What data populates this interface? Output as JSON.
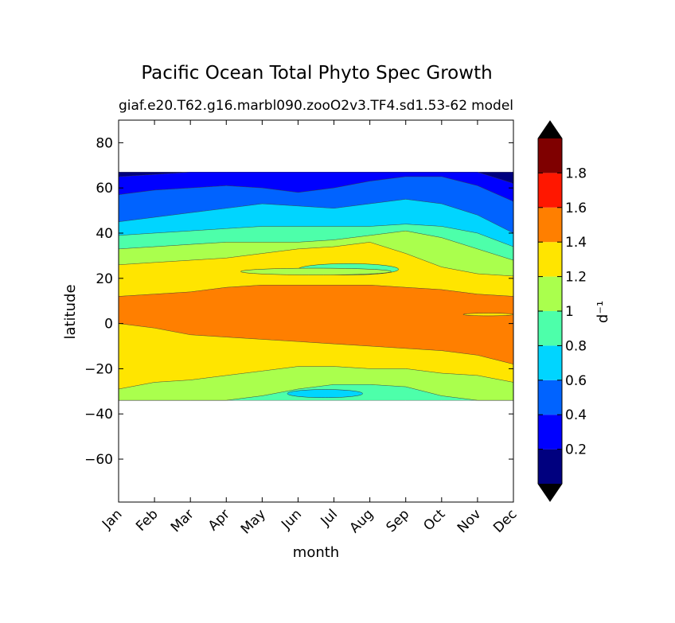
{
  "chart_data": {
    "type": "contourf",
    "title": "Pacific Ocean Total Phyto Spec Growth",
    "subtitle_left": "giaf.e20.T62.g16.marbl090.zooO2v3.TF4.sd1.53-62",
    "subtitle_right": "model",
    "xlabel": "month",
    "ylabel": "latitude",
    "x_tick_labels": [
      "Jan",
      "Feb",
      "Mar",
      "Apr",
      "May",
      "Jun",
      "Jul",
      "Aug",
      "Sep",
      "Oct",
      "Nov",
      "Dec"
    ],
    "x_range": [
      1,
      12
    ],
    "y_ticks": [
      80,
      60,
      40,
      20,
      0,
      -20,
      -40,
      -60
    ],
    "y_tick_labels": [
      "80",
      "60",
      "40",
      "20",
      "0",
      "−20",
      "−40",
      "−60"
    ],
    "ylim": [
      -79,
      90
    ],
    "data_lat_range": [
      -34,
      67
    ],
    "colorbar": {
      "label": "d⁻¹",
      "levels": [
        0,
        0.2,
        0.4,
        0.6,
        0.8,
        1.0,
        1.2,
        1.4,
        1.6,
        1.8,
        2.0
      ],
      "tick_values": [
        0.2,
        0.4,
        0.6,
        0.8,
        1.0,
        1.2,
        1.4,
        1.6,
        1.8
      ],
      "tick_labels": [
        "0.2",
        "0.4",
        "0.6",
        "0.8",
        "1",
        "1.2",
        "1.4",
        "1.6",
        "1.8"
      ],
      "colors": [
        "#00007f",
        "#0000ff",
        "#0063ff",
        "#00d5ff",
        "#4dffaa",
        "#aaff4d",
        "#ffe500",
        "#ff7f00",
        "#ff1700",
        "#7f0000"
      ],
      "extend": "both",
      "under_color": "#000000",
      "over_color": "#000000"
    },
    "bands": [
      {
        "level": "0-0.2",
        "top": [
          67,
          67,
          67,
          67,
          67,
          67,
          67,
          67,
          67,
          67,
          67,
          67
        ],
        "bottom": [
          65,
          66,
          67,
          67,
          67,
          67,
          67,
          67,
          67,
          67,
          67,
          62
        ]
      },
      {
        "level": "0.2-0.4",
        "top": [
          65,
          66,
          67,
          67,
          67,
          67,
          67,
          67,
          67,
          67,
          67,
          62
        ],
        "bottom": [
          57,
          59,
          60,
          61,
          60,
          58,
          60,
          63,
          65,
          65,
          61,
          54
        ]
      },
      {
        "level": "0.4-0.6",
        "top": [
          57,
          59,
          60,
          61,
          60,
          58,
          60,
          63,
          65,
          65,
          61,
          54
        ],
        "bottom": [
          45,
          47,
          49,
          51,
          53,
          52,
          51,
          53,
          55,
          53,
          48,
          40
        ]
      },
      {
        "level": "0.6-0.8",
        "top": [
          45,
          47,
          49,
          51,
          53,
          52,
          51,
          53,
          55,
          53,
          48,
          40
        ],
        "bottom": [
          39,
          40,
          41,
          42,
          43,
          43,
          43,
          43,
          44,
          43,
          40,
          34
        ]
      },
      {
        "level": "0.8-1.0",
        "top": [
          39,
          40,
          41,
          42,
          43,
          43,
          43,
          43,
          44,
          43,
          40,
          34
        ],
        "bottom": [
          33,
          34,
          35,
          36,
          36,
          36,
          37,
          39,
          41,
          38,
          33,
          28
        ]
      },
      {
        "level": "1.0-1.2",
        "top": [
          33,
          34,
          35,
          36,
          36,
          36,
          37,
          39,
          41,
          38,
          33,
          28
        ],
        "bottom": [
          26,
          27,
          28,
          29,
          31,
          33,
          34,
          36,
          31,
          25,
          22,
          21
        ]
      },
      {
        "level": "1.2-1.4",
        "top": [
          26,
          27,
          28,
          29,
          31,
          33,
          34,
          36,
          31,
          25,
          22,
          21
        ],
        "bottom": [
          12,
          13,
          14,
          16,
          17,
          17,
          17,
          17,
          16,
          15,
          13,
          12
        ]
      },
      {
        "level": "1.4-1.6",
        "top": [
          12,
          13,
          14,
          16,
          17,
          17,
          17,
          17,
          16,
          15,
          13,
          12
        ],
        "bottom": [
          0,
          -2,
          -5,
          -6,
          -7,
          -8,
          -9,
          -10,
          -11,
          -12,
          -14,
          -18
        ]
      },
      {
        "level": "1.2-1.4",
        "top": [
          0,
          -2,
          -5,
          -6,
          -7,
          -8,
          -9,
          -10,
          -11,
          -12,
          -14,
          -18
        ],
        "bottom": [
          -29,
          -26,
          -25,
          -23,
          -21,
          -19,
          -19,
          -20,
          -20,
          -22,
          -23,
          -26
        ]
      },
      {
        "level": "1.0-1.2",
        "top": [
          -29,
          -26,
          -25,
          -23,
          -21,
          -19,
          -19,
          -20,
          -20,
          -22,
          -23,
          -26
        ],
        "bottom": [
          -34,
          -34,
          -34,
          -34,
          -32,
          -29,
          -27,
          -27,
          -28,
          -32,
          -34,
          -34
        ]
      },
      {
        "level": "0.8-1.0",
        "top": [
          -34,
          -34,
          -34,
          -34,
          -32,
          -29,
          -27,
          -27,
          -28,
          -32,
          -34,
          -34
        ],
        "bottom": [
          -34,
          -34,
          -34,
          -34,
          -34,
          -34,
          -34,
          -34,
          -34,
          -34,
          -34,
          -34
        ]
      }
    ],
    "patches": [
      {
        "level": "0.8-1.0",
        "month_start": 6.0,
        "month_end": 8.8,
        "lat_center": 24,
        "lat_half": 2.5
      },
      {
        "level": "1.0-1.2",
        "month_start": 4.4,
        "month_end": 8.6,
        "lat_center": 23,
        "lat_half": 1.5
      },
      {
        "level": "0.6-0.8",
        "month_start": 5.7,
        "month_end": 7.8,
        "lat_center": -31,
        "lat_half": 1.8
      },
      {
        "level": "1.2-1.4",
        "month_start": 10.6,
        "month_end": 12.0,
        "lat_center": 4,
        "lat_half": 0.6
      }
    ]
  }
}
